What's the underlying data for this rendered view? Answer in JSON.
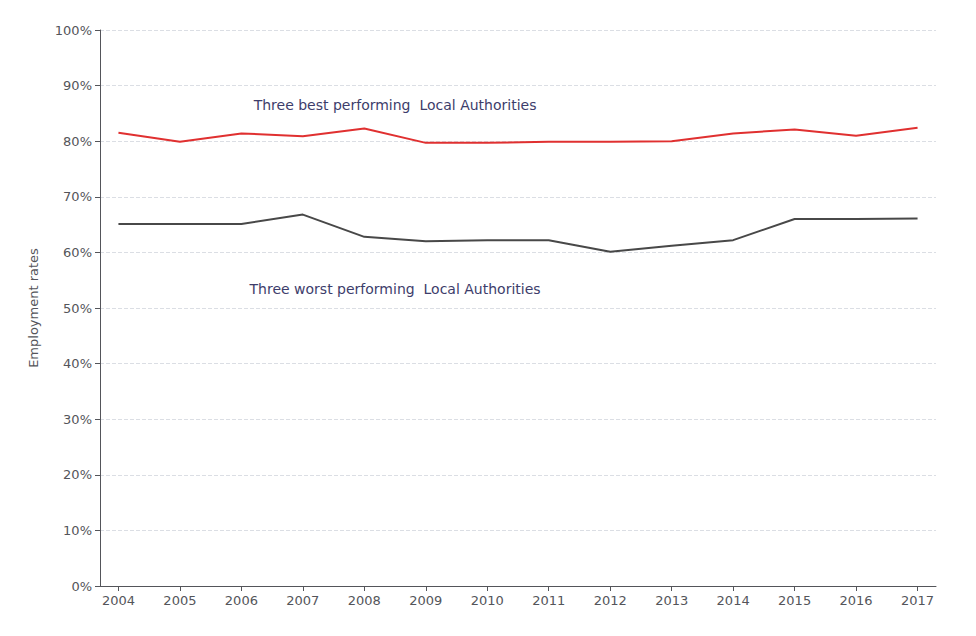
{
  "chart_data": {
    "type": "line",
    "y_label": "Employment rates",
    "x": [
      2004,
      2005,
      2006,
      2007,
      2008,
      2009,
      2010,
      2011,
      2012,
      2013,
      2014,
      2015,
      2016,
      2017
    ],
    "series": [
      {
        "color": "#e03030",
        "values": [
          0.815,
          0.799,
          0.814,
          0.809,
          0.823,
          0.797,
          0.797,
          0.799,
          0.799,
          0.8,
          0.814,
          0.821,
          0.81,
          0.824
        ]
      },
      {
        "color": "#484848",
        "values": [
          0.651,
          0.651,
          0.651,
          0.668,
          0.628,
          0.62,
          0.622,
          0.622,
          0.601,
          0.612,
          0.622,
          0.66,
          0.66,
          0.661
        ]
      }
    ],
    "annotations": [
      {
        "text": "Three best performing  Local Authorities",
        "x": 2008.5,
        "y": 0.865,
        "color": "#3d3d6b"
      },
      {
        "text": "Three worst performing  Local Authorities",
        "x": 2008.5,
        "y": 0.535,
        "color": "#3d3d6b"
      }
    ],
    "xlim": [
      2003.7,
      2017.3
    ],
    "xticks": [
      2004,
      2005,
      2006,
      2007,
      2008,
      2009,
      2010,
      2011,
      2012,
      2013,
      2014,
      2015,
      2016,
      2017
    ],
    "ylim": [
      0.0,
      1.0
    ],
    "yticks": [
      {
        "value": 0.0,
        "label": "0%"
      },
      {
        "value": 0.1,
        "label": "10%"
      },
      {
        "value": 0.2,
        "label": "20%"
      },
      {
        "value": 0.3,
        "label": "30%"
      },
      {
        "value": 0.4,
        "label": "40%"
      },
      {
        "value": 0.5,
        "label": "50%"
      },
      {
        "value": 0.6,
        "label": "60%"
      },
      {
        "value": 0.7,
        "label": "70%"
      },
      {
        "value": 0.8,
        "label": "80%"
      },
      {
        "value": 0.9,
        "label": "90%"
      },
      {
        "value": 1.0,
        "label": "100%"
      }
    ],
    "grid": true
  }
}
